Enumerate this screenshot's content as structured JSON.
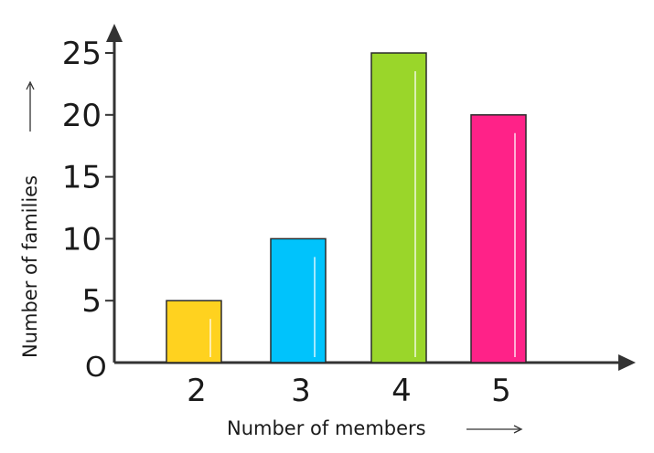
{
  "chart_data": {
    "type": "bar",
    "categories": [
      "2",
      "3",
      "4",
      "5"
    ],
    "values": [
      5,
      10,
      25,
      20
    ],
    "colors": [
      "#ffd21f",
      "#00c3fc",
      "#9ad62a",
      "#ff2288"
    ],
    "xlabel": "Number of members",
    "ylabel": "Number of families",
    "origin_label": "O",
    "yticks": [
      "5",
      "10",
      "15",
      "20",
      "25"
    ],
    "ylim": [
      0,
      25
    ],
    "grid": false,
    "legend": "none"
  }
}
